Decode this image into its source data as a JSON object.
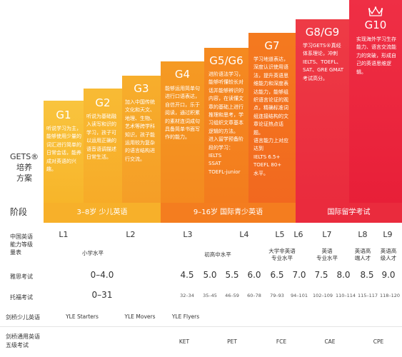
{
  "side_labels": {
    "gets": "GETS®\n培养\n方案",
    "stage": "阶段",
    "level": "中国英语\n能力等级\n量表",
    "ielts": "雅思考试",
    "toefl": "托福考试",
    "yle": "剑桥少儿英语",
    "main": "剑桥通用英语\n五级考试"
  },
  "grades": [
    {
      "name": "G1",
      "desc": "听说学习为主，能够使用少量的词汇进行简单的日常会话，能养成对英语的兴趣。"
    },
    {
      "name": "G2",
      "desc": "听说为基础融入读写和识的学习，孩子可以运用正确的语音语调描述日常生活。"
    },
    {
      "name": "G3",
      "desc": "加入中国传统文化和天文、地理、生物、艺术等跨学科知识，孩子能运用较为复杂的语言结构进行交流。"
    },
    {
      "name": "G4",
      "desc": "能够运用简单句进行口语表达，自信开口，乐于阅读，通过积累的素材连词成句具备简单书面写作的能力。"
    },
    {
      "name": "G5/G6",
      "desc": "进阶语法学习，能够听懂较长对话并能够辨识的内容，在读懂文章的基础上进行推理和思考，学习组织文章基本逻辑的方法。\n进入留学预备阶段的学习：\nIELTS\nSSAT\nTOEFL-junior"
    },
    {
      "name": "G7",
      "desc": "学习地道表达，深度认识使用语法，提升英语思维能力和深度表达能力，能够组织语言论证的观点，精确标准词组连接结构的文章论证热点话题。\n语言能力上对应达到\nIELTS 6.5+\nTOEFL 80+\n水平。"
    },
    {
      "name": "G8/G9",
      "desc": "学习GETS®真经体系理论，冲刺IELTS、TOEFL、SAT、GRE GMAT考试高分。"
    },
    {
      "name": "G10",
      "desc": "实现海外学习生存能力、语言交流能力的突破，形成自己的英语思维逻辑。"
    }
  ],
  "stages": [
    "3–8岁 少儿英语",
    "9–16岁 国际青少英语",
    "国际留学考试"
  ],
  "levels": [
    "L1",
    "L2",
    "L3",
    "L4",
    "L5",
    "L6",
    "L7",
    "L8",
    "L9"
  ],
  "level_texts": {
    "primary": "小学水平",
    "junior_senior": "初高中水平",
    "college": "大学非英语\n专业水平",
    "english_major": "英语\n专业水平",
    "talent": "英语高\n端人才",
    "elite": "英语高\n级人才"
  },
  "ielts_scores": [
    "0–4.0",
    "4.5",
    "5.0",
    "5.5",
    "6.0",
    "6.5",
    "7.0",
    "7.5",
    "8.0",
    "8.5",
    "9.0"
  ],
  "toefl_scores": [
    "0–31",
    "32–34",
    "35–45",
    "46–59",
    "60–78",
    "79–93",
    "94–101",
    "102–109",
    "110–114",
    "115–117",
    "118–120"
  ],
  "yle": [
    "YLE Starters",
    "YLE Movers",
    "YLE Flyers"
  ],
  "main_suite": [
    "KET",
    "PET",
    "FCE",
    "CAE",
    "CPE"
  ],
  "colors": {
    "g1": "#f7b52a",
    "g2": "#f7a92a",
    "g3": "#f59d28",
    "g4": "#f48a1f",
    "g5": "#f37d1f",
    "g7": "#f26e20",
    "g8": "#ec2e3f",
    "g10": "#ea1f3a",
    "band1": "#f7b32a",
    "band2": "#f48421",
    "band3": "#ec2a3e"
  }
}
